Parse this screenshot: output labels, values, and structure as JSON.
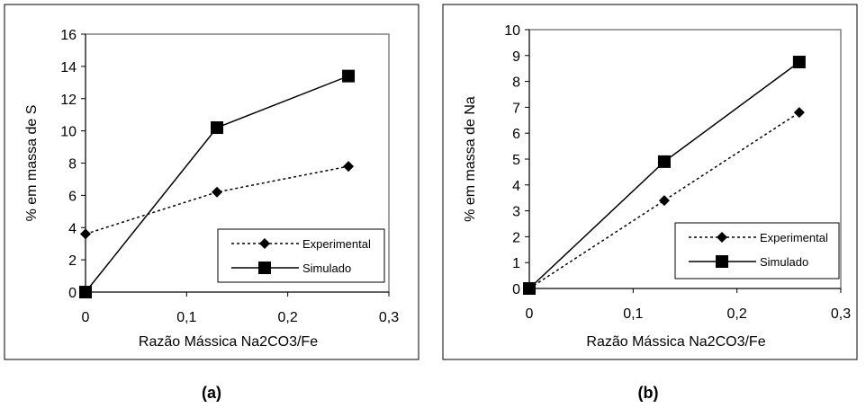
{
  "chart_data": [
    {
      "type": "line",
      "caption": "(a)",
      "xlabel": "Razão Mássica Na2CO3/Fe",
      "ylabel": "% em massa de S",
      "xlim": [
        0,
        0.3
      ],
      "ylim": [
        0,
        16
      ],
      "x_ticks": [
        "0",
        "0,1",
        "0,2",
        "0,3"
      ],
      "x_tick_values": [
        0,
        0.1,
        0.2,
        0.3
      ],
      "y_ticks": [
        "0",
        "2",
        "4",
        "6",
        "8",
        "10",
        "12",
        "14",
        "16"
      ],
      "y_tick_values": [
        0,
        2,
        4,
        6,
        8,
        10,
        12,
        14,
        16
      ],
      "legend_position": "bottom-right",
      "series": [
        {
          "name": "Experimental",
          "style": "dotted",
          "marker": "diamond",
          "x": [
            0,
            0.13,
            0.26
          ],
          "y": [
            3.6,
            6.2,
            7.8
          ]
        },
        {
          "name": "Simulado",
          "style": "solid",
          "marker": "square",
          "x": [
            0,
            0.13,
            0.26
          ],
          "y": [
            0,
            10.2,
            13.4
          ]
        }
      ]
    },
    {
      "type": "line",
      "caption": "(b)",
      "xlabel": "Razão Mássica Na2CO3/Fe",
      "ylabel": "% em massa de Na",
      "xlim": [
        0,
        0.3
      ],
      "ylim": [
        0,
        10
      ],
      "x_ticks": [
        "0",
        "0,1",
        "0,2",
        "0,3"
      ],
      "x_tick_values": [
        0,
        0.1,
        0.2,
        0.3
      ],
      "y_ticks": [
        "0",
        "1",
        "2",
        "3",
        "4",
        "5",
        "6",
        "7",
        "8",
        "9",
        "10"
      ],
      "y_tick_values": [
        0,
        1,
        2,
        3,
        4,
        5,
        6,
        7,
        8,
        9,
        10
      ],
      "legend_position": "bottom-right",
      "series": [
        {
          "name": "Experimental",
          "style": "dotted",
          "marker": "diamond",
          "x": [
            0,
            0.13,
            0.26
          ],
          "y": [
            0,
            3.4,
            6.8
          ]
        },
        {
          "name": "Simulado",
          "style": "solid",
          "marker": "square",
          "x": [
            0,
            0.13,
            0.26
          ],
          "y": [
            0,
            4.9,
            8.75
          ]
        }
      ]
    }
  ]
}
